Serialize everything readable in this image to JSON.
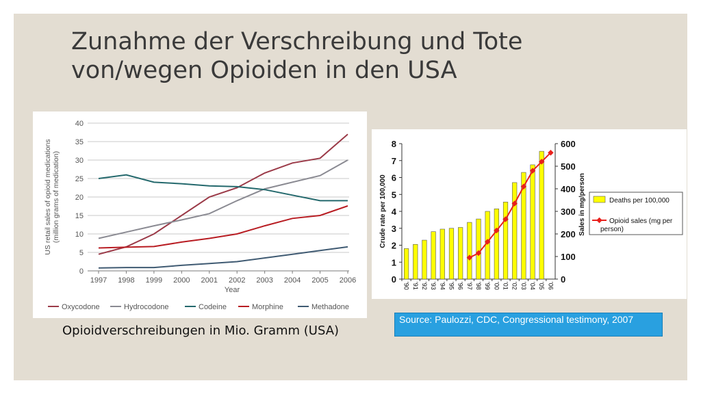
{
  "slide": {
    "title": "Zunahme der Verschreibung und Tote von/wegen Opioiden in den USA",
    "caption": "Opioidverschreibungen in Mio. Gramm (USA)",
    "source": "Source:  Paulozzi, CDC, Congressional testimony, 2007"
  },
  "chart_data": [
    {
      "type": "line",
      "xlabel": "Year",
      "ylabel": "US retail sales of opioid medications (million grams of medication)",
      "x": [
        "1997",
        "1998",
        "1999",
        "2000",
        "2001",
        "2002",
        "2003",
        "2004",
        "2005",
        "2006"
      ],
      "ylim": [
        0,
        40
      ],
      "yticks": [
        "0",
        "5",
        "10",
        "15",
        "20",
        "25",
        "30",
        "35",
        "40"
      ],
      "grid": true,
      "legend": "bottom",
      "series": [
        {
          "name": "Oxycodone",
          "color": "#9b3a48",
          "values": [
            4.5,
            6.5,
            10,
            15,
            20,
            22.5,
            26.5,
            29.2,
            30.5,
            37
          ]
        },
        {
          "name": "Hydrocodone",
          "color": "#8a8a92",
          "values": [
            8.8,
            10.5,
            12.2,
            13.8,
            15.5,
            19,
            22.2,
            24,
            25.8,
            30
          ]
        },
        {
          "name": "Codeine",
          "color": "#23686c",
          "values": [
            25,
            26,
            24,
            23.6,
            23,
            22.8,
            22,
            20.5,
            19,
            19
          ]
        },
        {
          "name": "Morphine",
          "color": "#b81c22",
          "values": [
            6.2,
            6.4,
            6.6,
            7.8,
            8.8,
            10,
            12.2,
            14.2,
            15,
            17.6
          ]
        },
        {
          "name": "Methadone",
          "color": "#3f5a72",
          "values": [
            0.8,
            0.9,
            0.9,
            1.5,
            2,
            2.5,
            3.5,
            4.5,
            5.5,
            6.5
          ]
        }
      ]
    },
    {
      "type": "bar",
      "categories": [
        "'90",
        "'91",
        "'92",
        "'93",
        "'94",
        "'95",
        "'96",
        "'97",
        "'98",
        "'99",
        "'00",
        "'01",
        "'02",
        "'03",
        "'04",
        "'05",
        "'06"
      ],
      "ylabel": "Crude rate per 100,000",
      "y2label": "Sales in mg/person",
      "ylim": [
        0,
        8
      ],
      "y2lim": [
        0,
        600
      ],
      "yticks": [
        "0",
        "1",
        "2",
        "3",
        "4",
        "5",
        "6",
        "7",
        "8"
      ],
      "y2ticks": [
        "0",
        "100",
        "200",
        "300",
        "400",
        "500",
        "600"
      ],
      "legend": "right",
      "series": [
        {
          "name": "Deaths per 100,000",
          "type": "bar",
          "color": "#ffff00",
          "values": [
            1.8,
            2.05,
            2.3,
            2.8,
            2.95,
            3.0,
            3.05,
            3.35,
            3.55,
            4.0,
            4.15,
            4.55,
            5.7,
            6.3,
            6.75,
            7.55,
            null
          ]
        },
        {
          "name": "Opioid sales (mg per person)",
          "type": "line",
          "axis": "right",
          "color": "#e8201c",
          "values": [
            null,
            null,
            null,
            null,
            null,
            null,
            null,
            95,
            115,
            165,
            215,
            265,
            335,
            410,
            480,
            520,
            560
          ]
        }
      ]
    }
  ]
}
